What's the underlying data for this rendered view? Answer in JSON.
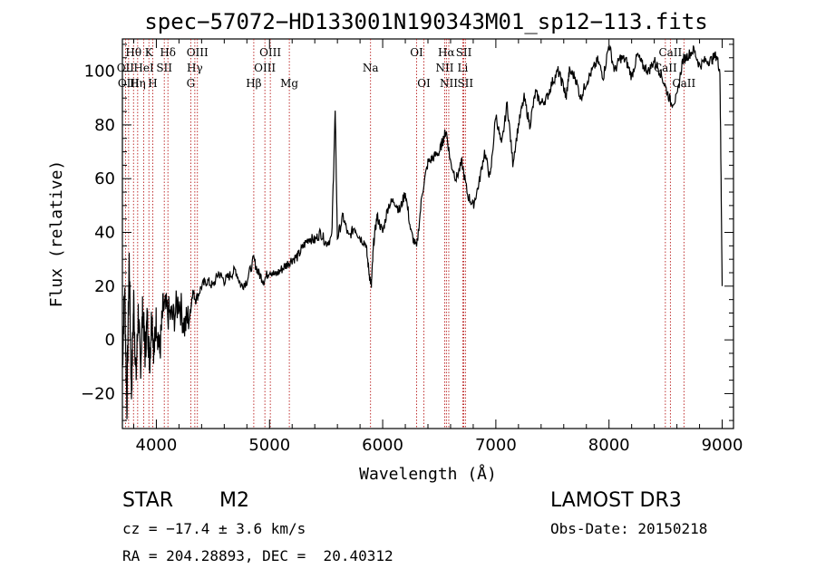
{
  "chart_data": {
    "type": "line",
    "title": "spec−57072−HD133001N190343M01_sp12−113.fits",
    "xlabel": "Wavelength (Å)",
    "ylabel": "Flux (relative)",
    "xlim": [
      3700,
      9100
    ],
    "ylim": [
      -33,
      112
    ],
    "x_ticks": [
      4000,
      5000,
      6000,
      7000,
      8000,
      9000
    ],
    "y_ticks": [
      -20,
      0,
      20,
      40,
      60,
      80,
      100
    ],
    "y_tick_labels": [
      "−20",
      "0",
      "20",
      "40",
      "60",
      "80",
      "100"
    ],
    "grid": false,
    "series": [
      {
        "name": "spectrum",
        "x": [
          3700,
          3720,
          3740,
          3760,
          3780,
          3800,
          3820,
          3840,
          3860,
          3880,
          3900,
          3920,
          3940,
          3960,
          3980,
          4000,
          4030,
          4060,
          4100,
          4150,
          4200,
          4250,
          4300,
          4320,
          4350,
          4400,
          4450,
          4500,
          4550,
          4600,
          4650,
          4700,
          4750,
          4800,
          4860,
          4900,
          4950,
          5000,
          5050,
          5100,
          5150,
          5200,
          5250,
          5300,
          5350,
          5400,
          5450,
          5500,
          5550,
          5580,
          5600,
          5650,
          5700,
          5750,
          5800,
          5850,
          5880,
          5900,
          5920,
          5950,
          6000,
          6050,
          6100,
          6150,
          6200,
          6250,
          6300,
          6350,
          6400,
          6450,
          6500,
          6530,
          6560,
          6600,
          6650,
          6700,
          6750,
          6800,
          6850,
          6900,
          6950,
          7000,
          7050,
          7100,
          7150,
          7200,
          7250,
          7300,
          7350,
          7400,
          7450,
          7500,
          7550,
          7600,
          7620,
          7650,
          7700,
          7750,
          7800,
          7850,
          7900,
          7950,
          8000,
          8050,
          8100,
          8150,
          8200,
          8250,
          8300,
          8350,
          8400,
          8450,
          8500,
          8550,
          8600,
          8650,
          8700,
          8750,
          8800,
          8850,
          8900,
          8950,
          8980,
          9000
        ],
        "y": [
          -10,
          20,
          -25,
          30,
          -20,
          15,
          -15,
          10,
          -10,
          12,
          -5,
          8,
          -8,
          10,
          -5,
          8,
          -5,
          12,
          10,
          8,
          15,
          5,
          10,
          18,
          15,
          20,
          22,
          20,
          25,
          22,
          24,
          26,
          20,
          22,
          30,
          25,
          22,
          26,
          24,
          26,
          28,
          30,
          31,
          35,
          38,
          37,
          40,
          36,
          38,
          85,
          38,
          46,
          38,
          42,
          38,
          36,
          25,
          20,
          36,
          46,
          40,
          50,
          52,
          48,
          55,
          40,
          34,
          55,
          66,
          68,
          70,
          74,
          78,
          66,
          60,
          66,
          54,
          50,
          58,
          70,
          60,
          84,
          72,
          88,
          66,
          80,
          90,
          80,
          92,
          88,
          90,
          96,
          100,
          94,
          90,
          100,
          98,
          90,
          96,
          100,
          104,
          98,
          110,
          100,
          105,
          104,
          98,
          106,
          102,
          100,
          104,
          100,
          94,
          88,
          90,
          104,
          106,
          108,
          102,
          104,
          104,
          106,
          100,
          20
        ]
      }
    ],
    "spectral_lines": [
      {
        "label": "Hθ",
        "wl": 3798,
        "row": 0
      },
      {
        "label": "K",
        "wl": 3934,
        "row": 0
      },
      {
        "label": "Hδ",
        "wl": 4102,
        "row": 0
      },
      {
        "label": "OIII",
        "wl": 4363,
        "row": 0
      },
      {
        "label": "OIII",
        "wl": 5007,
        "row": 0
      },
      {
        "label": "OI",
        "wl": 6300,
        "row": 0
      },
      {
        "label": "Hα",
        "wl": 6563,
        "row": 0
      },
      {
        "label": "SII",
        "wl": 6717,
        "row": 0
      },
      {
        "label": "CaII",
        "wl": 8542,
        "row": 0
      },
      {
        "label": "OII",
        "wl": 3727,
        "row": 1
      },
      {
        "label": "HeI",
        "wl": 3889,
        "row": 1
      },
      {
        "label": "SII",
        "wl": 4070,
        "row": 1
      },
      {
        "label": "Hγ",
        "wl": 4340,
        "row": 1
      },
      {
        "label": "OIII",
        "wl": 4959,
        "row": 1
      },
      {
        "label": "Na",
        "wl": 5893,
        "row": 1
      },
      {
        "label": "NII",
        "wl": 6548,
        "row": 1
      },
      {
        "label": "Li",
        "wl": 6708,
        "row": 1
      },
      {
        "label": "CaII",
        "wl": 8498,
        "row": 1
      },
      {
        "label": "OIII",
        "wl": 3755,
        "row": 2
      },
      {
        "label": "Hη",
        "wl": 3835,
        "row": 2
      },
      {
        "label": "H",
        "wl": 3968,
        "row": 2
      },
      {
        "label": "G",
        "wl": 4304,
        "row": 2
      },
      {
        "label": "Hβ",
        "wl": 4861,
        "row": 2
      },
      {
        "label": "Mg",
        "wl": 5175,
        "row": 2
      },
      {
        "label": "OI",
        "wl": 6364,
        "row": 2
      },
      {
        "label": "NII",
        "wl": 6584,
        "row": 2
      },
      {
        "label": "SII",
        "wl": 6731,
        "row": 2
      },
      {
        "label": "CaII",
        "wl": 8662,
        "row": 2
      }
    ]
  },
  "info": {
    "object_class": "STAR",
    "subclass": "M2",
    "cz": "cz = −17.4 ± 3.6 km/s",
    "radec": "RA = 204.28893, DEC =  20.40312",
    "survey": "LAMOST DR3",
    "obs_date": "Obs-Date: 20150218"
  }
}
